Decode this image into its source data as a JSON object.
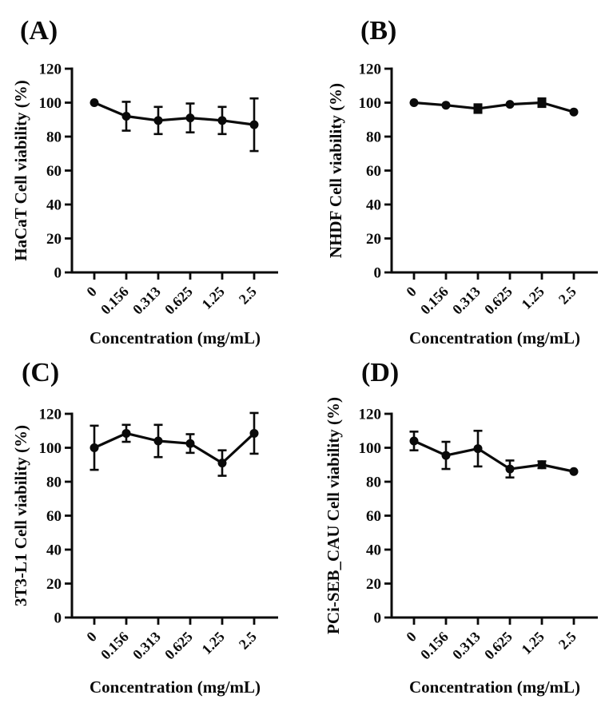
{
  "figure": {
    "background_color": "#ffffff",
    "ink_color": "#0a0a0a",
    "description": "Four-panel cell viability figure"
  },
  "chart_data": [
    {
      "type": "line",
      "panel_label": "(A)",
      "ylabel": "HaCaT Cell viability (%)",
      "xlabel": "Concentration (mg/mL)",
      "categories": [
        "0",
        "0.156",
        "0.313",
        "0.625",
        "1.25",
        "2.5"
      ],
      "values": [
        100,
        92,
        89.5,
        91,
        89.5,
        87
      ],
      "error_bars": [
        0,
        8.5,
        8,
        8.5,
        8,
        15.5
      ],
      "marker_shapes": [
        "circle",
        "circle",
        "circle",
        "circle",
        "circle",
        "circle"
      ],
      "ylim": [
        0,
        120
      ],
      "yticks": [
        "0",
        "20",
        "40",
        "60",
        "80",
        "100",
        "120"
      ],
      "grid": "off",
      "legend": "none",
      "series_color": "#0a0a0a"
    },
    {
      "type": "line",
      "panel_label": "(B)",
      "ylabel": "NHDF Cell viability (%)",
      "xlabel": "Concentration (mg/mL)",
      "categories": [
        "0",
        "0.156",
        "0.313",
        "0.625",
        "1.25",
        "2.5"
      ],
      "values": [
        100,
        98.5,
        96.5,
        99,
        100,
        94.5
      ],
      "error_bars": [
        0,
        0,
        2.5,
        0,
        2.5,
        0
      ],
      "marker_shapes": [
        "circle",
        "circle",
        "square",
        "circle",
        "square",
        "circle"
      ],
      "ylim": [
        0,
        120
      ],
      "yticks": [
        "0",
        "20",
        "40",
        "60",
        "80",
        "100",
        "120"
      ],
      "grid": "off",
      "legend": "none",
      "series_color": "#0a0a0a"
    },
    {
      "type": "line",
      "panel_label": "(C)",
      "ylabel": "3T3-L1 Cell viability (%)",
      "xlabel": "Concentration (mg/mL)",
      "categories": [
        "0",
        "0.156",
        "0.313",
        "0.625",
        "1.25",
        "2.5"
      ],
      "values": [
        100,
        108.5,
        104,
        102.5,
        91,
        108.5
      ],
      "error_bars": [
        13,
        5,
        9.5,
        5.5,
        7.5,
        12
      ],
      "marker_shapes": [
        "circle",
        "circle",
        "circle",
        "circle",
        "circle",
        "circle"
      ],
      "ylim": [
        0,
        120
      ],
      "yticks": [
        "0",
        "20",
        "40",
        "60",
        "80",
        "100",
        "120"
      ],
      "grid": "off",
      "legend": "none",
      "series_color": "#0a0a0a"
    },
    {
      "type": "line",
      "panel_label": "(D)",
      "ylabel": "PCi-SEB_CAU Cell viability (%)",
      "xlabel": "Concentration (mg/mL)",
      "categories": [
        "0",
        "0.156",
        "0.313",
        "0.625",
        "1.25",
        "2.5"
      ],
      "values": [
        104,
        95.5,
        99.5,
        87.5,
        90,
        86
      ],
      "error_bars": [
        5.5,
        8,
        10.5,
        5,
        2,
        0
      ],
      "marker_shapes": [
        "circle",
        "circle",
        "circle",
        "circle",
        "circle",
        "circle"
      ],
      "ylim": [
        0,
        120
      ],
      "yticks": [
        "0",
        "20",
        "40",
        "60",
        "80",
        "100",
        "120"
      ],
      "grid": "off",
      "legend": "none",
      "series_color": "#0a0a0a"
    }
  ]
}
